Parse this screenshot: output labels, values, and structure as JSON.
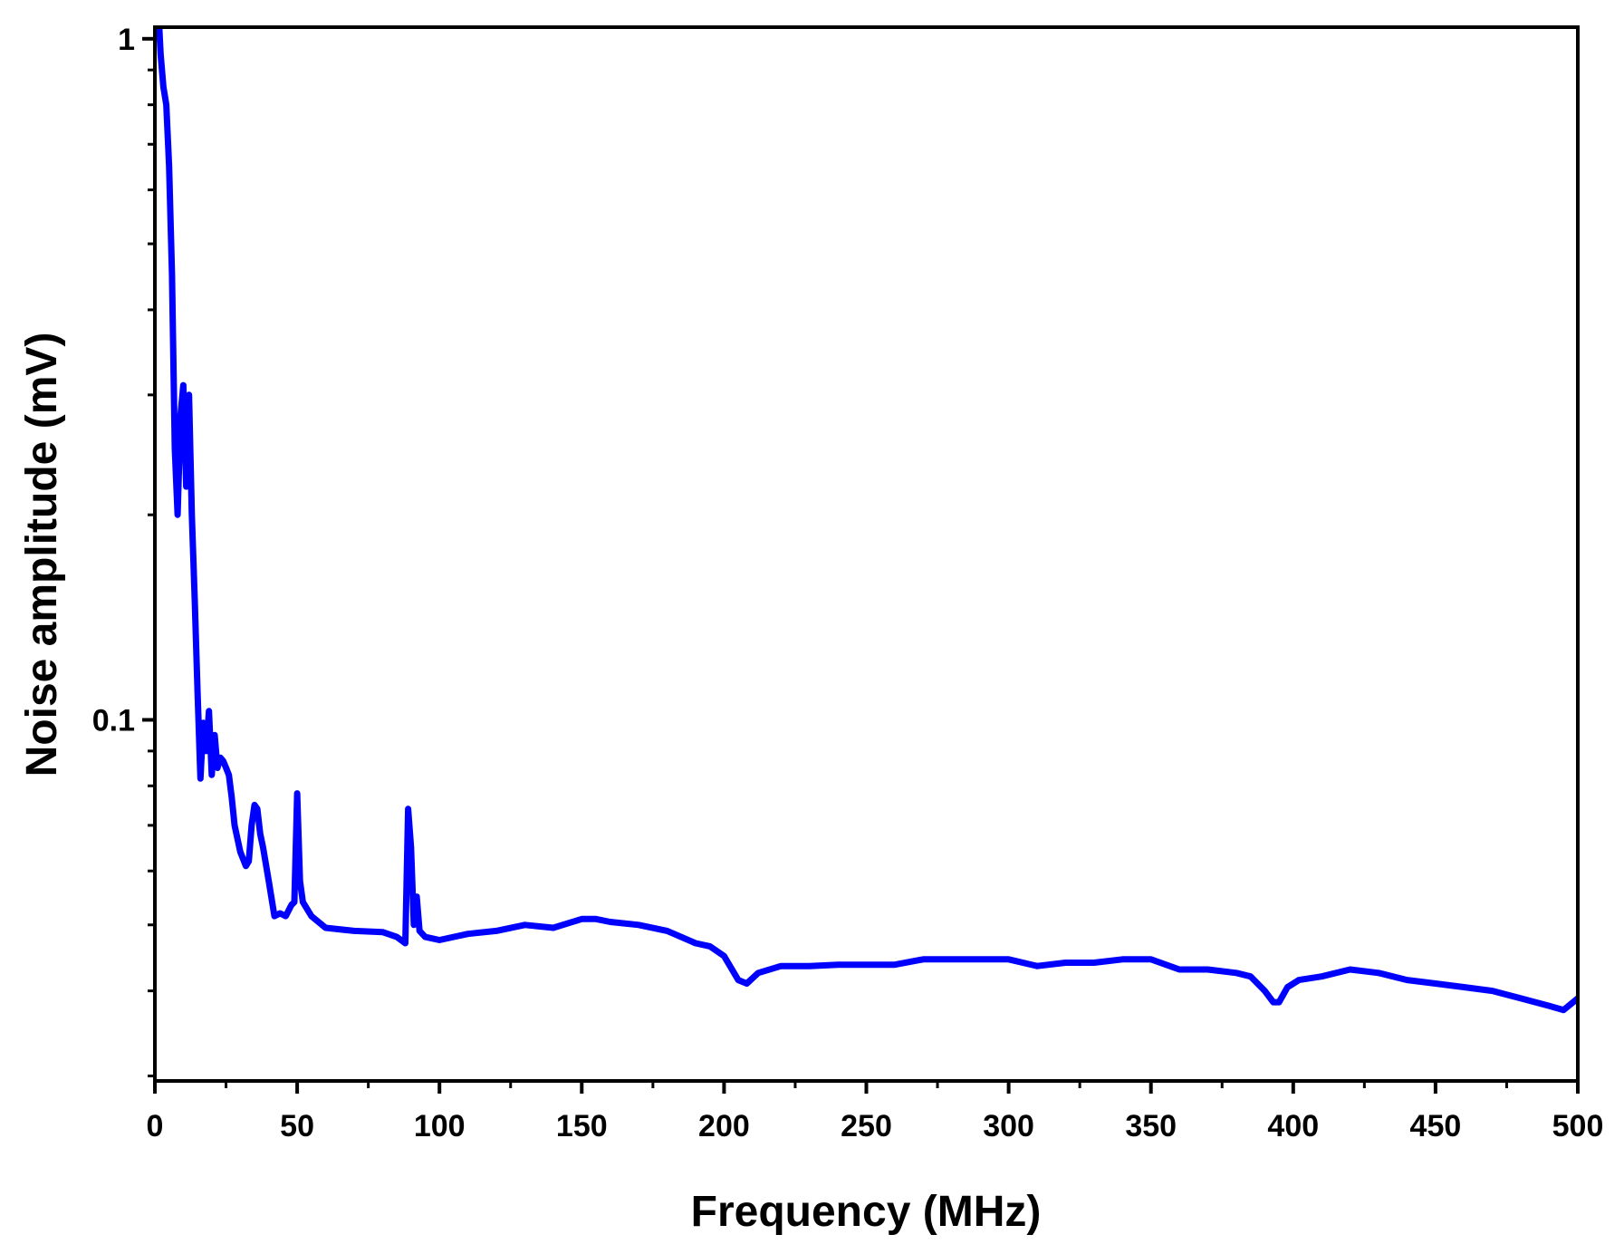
{
  "chart_data": {
    "type": "line",
    "title": "",
    "xlabel": "Frequency (MHz)",
    "ylabel": "Noise amplitude (mV)",
    "xlim": [
      0,
      500
    ],
    "ylim": [
      0.0295,
      1.04
    ],
    "yscale": "log",
    "grid": false,
    "legend": "none",
    "line_color": "#0000ff",
    "x_ticks": [
      {
        "value": 0,
        "label": "0"
      },
      {
        "value": 50,
        "label": "50"
      },
      {
        "value": 100,
        "label": "100"
      },
      {
        "value": 150,
        "label": "150"
      },
      {
        "value": 200,
        "label": "200"
      },
      {
        "value": 250,
        "label": "250"
      },
      {
        "value": 300,
        "label": "300"
      },
      {
        "value": 350,
        "label": "350"
      },
      {
        "value": 400,
        "label": "400"
      },
      {
        "value": 450,
        "label": "450"
      },
      {
        "value": 500,
        "label": "500"
      }
    ],
    "y_ticks": [
      {
        "value": 1,
        "label": "1"
      },
      {
        "value": 0.1,
        "label": "0.1"
      }
    ],
    "series": [
      {
        "x": [
          0,
          1.5,
          2,
          3,
          4,
          5,
          6,
          7,
          8,
          9,
          10,
          11,
          12,
          13,
          14,
          15,
          16,
          17,
          18,
          19,
          20,
          21,
          22,
          23,
          24,
          25,
          26,
          27,
          28,
          30,
          32,
          33,
          34,
          35,
          36,
          37,
          38,
          40,
          42,
          44,
          46,
          48,
          49,
          50,
          51,
          52,
          55,
          60,
          70,
          80,
          85,
          88,
          89,
          90,
          91,
          92,
          93,
          95,
          100,
          110,
          120,
          130,
          140,
          150,
          155,
          160,
          170,
          180,
          190,
          195,
          200,
          205,
          208,
          212,
          220,
          230,
          240,
          250,
          260,
          270,
          280,
          290,
          300,
          310,
          320,
          330,
          340,
          350,
          360,
          370,
          380,
          385,
          390,
          393,
          395,
          398,
          402,
          410,
          420,
          430,
          440,
          450,
          460,
          470,
          480,
          490,
          495,
          500
        ],
        "y": [
          1.1,
          1.05,
          0.95,
          0.85,
          0.8,
          0.65,
          0.45,
          0.25,
          0.2,
          0.28,
          0.31,
          0.22,
          0.3,
          0.2,
          0.15,
          0.11,
          0.082,
          0.099,
          0.09,
          0.103,
          0.083,
          0.095,
          0.085,
          0.088,
          0.087,
          0.085,
          0.083,
          0.077,
          0.07,
          0.064,
          0.061,
          0.062,
          0.07,
          0.075,
          0.074,
          0.068,
          0.065,
          0.058,
          0.0515,
          0.052,
          0.0515,
          0.0535,
          0.054,
          0.078,
          0.058,
          0.054,
          0.0515,
          0.0495,
          0.049,
          0.0488,
          0.048,
          0.047,
          0.074,
          0.065,
          0.05,
          0.055,
          0.049,
          0.048,
          0.0475,
          0.0485,
          0.049,
          0.05,
          0.0495,
          0.051,
          0.051,
          0.0505,
          0.05,
          0.049,
          0.047,
          0.0465,
          0.045,
          0.0415,
          0.041,
          0.0425,
          0.0435,
          0.0435,
          0.0437,
          0.0437,
          0.0437,
          0.0445,
          0.0445,
          0.0445,
          0.0445,
          0.0435,
          0.044,
          0.044,
          0.0445,
          0.0445,
          0.043,
          0.043,
          0.0425,
          0.042,
          0.04,
          0.0385,
          0.0385,
          0.0405,
          0.0415,
          0.042,
          0.043,
          0.0425,
          0.0415,
          0.041,
          0.0405,
          0.04,
          0.039,
          0.038,
          0.0375,
          0.039
        ]
      }
    ]
  }
}
